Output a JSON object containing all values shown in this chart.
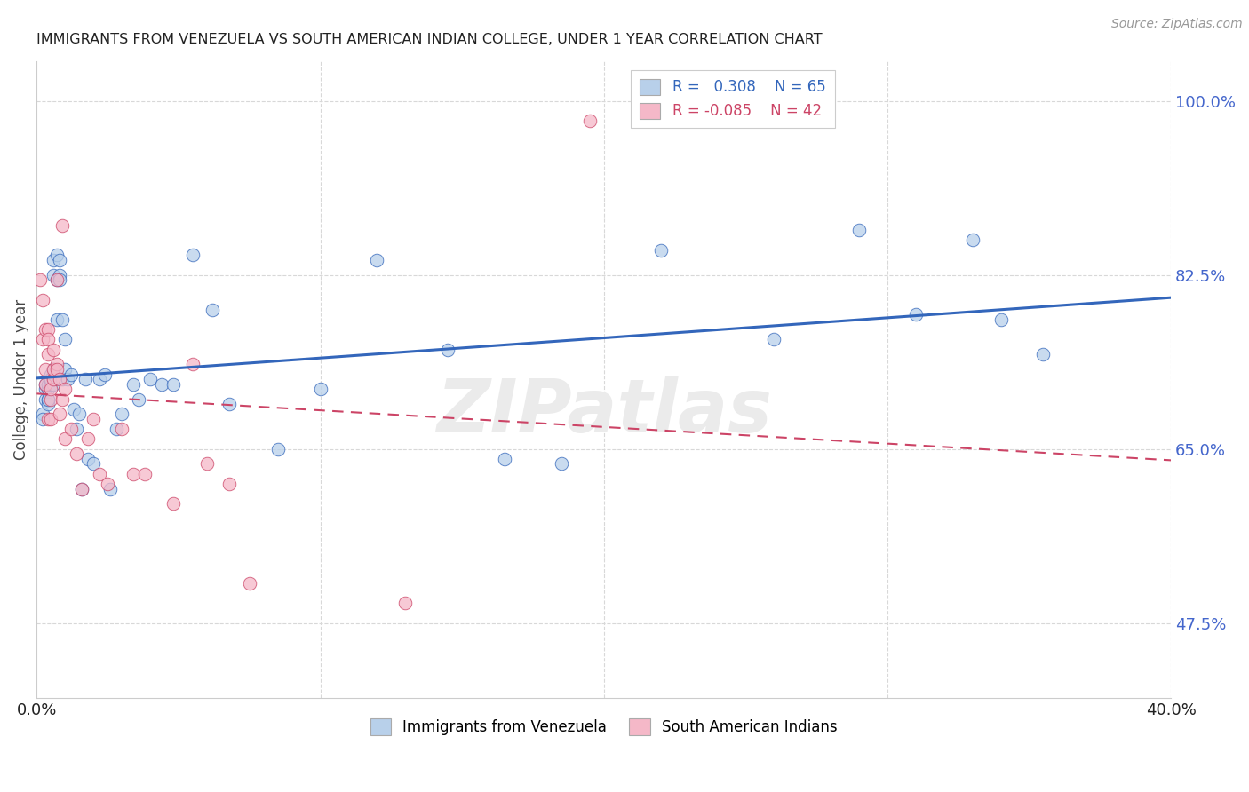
{
  "title": "IMMIGRANTS FROM VENEZUELA VS SOUTH AMERICAN INDIAN COLLEGE, UNDER 1 YEAR CORRELATION CHART",
  "source": "Source: ZipAtlas.com",
  "ylabel": "College, Under 1 year",
  "xlim": [
    0.0,
    0.4
  ],
  "ylim": [
    0.4,
    1.04
  ],
  "xticks": [
    0.0,
    0.1,
    0.2,
    0.3,
    0.4
  ],
  "xticklabels": [
    "0.0%",
    "",
    "",
    "",
    "40.0%"
  ],
  "ytick_right_labels": [
    "100.0%",
    "82.5%",
    "65.0%",
    "47.5%"
  ],
  "ytick_right_values": [
    1.0,
    0.825,
    0.65,
    0.475
  ],
  "r_blue": 0.308,
  "n_blue": 65,
  "r_pink": -0.085,
  "n_pink": 42,
  "blue_color": "#b8d0ea",
  "pink_color": "#f5b8c8",
  "blue_line_color": "#3366bb",
  "pink_line_color": "#cc4466",
  "blue_scatter_x": [
    0.002,
    0.002,
    0.003,
    0.003,
    0.003,
    0.004,
    0.004,
    0.004,
    0.004,
    0.004,
    0.005,
    0.005,
    0.005,
    0.005,
    0.005,
    0.006,
    0.006,
    0.006,
    0.006,
    0.006,
    0.007,
    0.007,
    0.007,
    0.008,
    0.008,
    0.008,
    0.009,
    0.009,
    0.01,
    0.01,
    0.011,
    0.012,
    0.013,
    0.014,
    0.015,
    0.016,
    0.017,
    0.018,
    0.02,
    0.022,
    0.024,
    0.026,
    0.028,
    0.03,
    0.034,
    0.036,
    0.04,
    0.044,
    0.048,
    0.055,
    0.062,
    0.068,
    0.085,
    0.1,
    0.12,
    0.145,
    0.165,
    0.185,
    0.22,
    0.26,
    0.29,
    0.31,
    0.33,
    0.34,
    0.355
  ],
  "blue_scatter_y": [
    0.685,
    0.68,
    0.7,
    0.71,
    0.715,
    0.7,
    0.695,
    0.7,
    0.71,
    0.715,
    0.72,
    0.72,
    0.715,
    0.725,
    0.72,
    0.715,
    0.72,
    0.73,
    0.825,
    0.84,
    0.845,
    0.82,
    0.78,
    0.825,
    0.84,
    0.82,
    0.78,
    0.72,
    0.73,
    0.76,
    0.72,
    0.725,
    0.69,
    0.67,
    0.685,
    0.61,
    0.72,
    0.64,
    0.635,
    0.72,
    0.725,
    0.61,
    0.67,
    0.685,
    0.715,
    0.7,
    0.72,
    0.715,
    0.715,
    0.845,
    0.79,
    0.695,
    0.65,
    0.71,
    0.84,
    0.75,
    0.64,
    0.635,
    0.85,
    0.76,
    0.87,
    0.785,
    0.86,
    0.78,
    0.745
  ],
  "pink_scatter_x": [
    0.001,
    0.002,
    0.002,
    0.003,
    0.003,
    0.003,
    0.004,
    0.004,
    0.004,
    0.004,
    0.005,
    0.005,
    0.005,
    0.006,
    0.006,
    0.006,
    0.007,
    0.007,
    0.007,
    0.008,
    0.008,
    0.009,
    0.009,
    0.01,
    0.01,
    0.012,
    0.014,
    0.016,
    0.018,
    0.02,
    0.022,
    0.025,
    0.03,
    0.034,
    0.038,
    0.048,
    0.055,
    0.06,
    0.068,
    0.075,
    0.13,
    0.195
  ],
  "pink_scatter_y": [
    0.82,
    0.76,
    0.8,
    0.715,
    0.73,
    0.77,
    0.745,
    0.77,
    0.68,
    0.76,
    0.68,
    0.7,
    0.71,
    0.72,
    0.73,
    0.75,
    0.735,
    0.73,
    0.82,
    0.72,
    0.685,
    0.875,
    0.7,
    0.71,
    0.66,
    0.67,
    0.645,
    0.61,
    0.66,
    0.68,
    0.625,
    0.615,
    0.67,
    0.625,
    0.625,
    0.595,
    0.735,
    0.635,
    0.615,
    0.515,
    0.495,
    0.98
  ],
  "watermark": "ZIPatlas",
  "background_color": "#ffffff",
  "grid_color": "#d8d8d8",
  "title_color": "#222222",
  "right_tick_color": "#4466cc",
  "bottom_tick_color": "#222222"
}
